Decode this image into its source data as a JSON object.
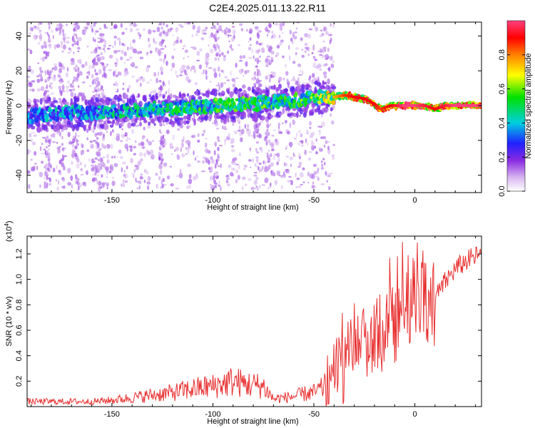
{
  "title": "C2E4.2025.011.13.22.R11",
  "chart_data": [
    {
      "type": "heatmap",
      "xlabel": "Height of straight line (km)",
      "ylabel": "Frequency (Hz)",
      "xlim": [
        -192,
        33
      ],
      "ylim": [
        -50,
        48
      ],
      "xticks": [
        -150,
        -100,
        -50,
        0
      ],
      "yticks": [
        -40,
        -20,
        0,
        20,
        40
      ],
      "xtick_labels": [
        "-150",
        "-100",
        "-50",
        "0"
      ],
      "ytick_labels": [
        "-40",
        "-20",
        "0",
        "20",
        "40"
      ],
      "colorbar": {
        "label": "Normalized spectral amplitude",
        "range": [
          0,
          1
        ],
        "ticks": [
          0.0,
          0.2,
          0.4,
          0.6,
          0.8
        ],
        "tick_labels": [
          "0.0",
          "0.2",
          "0.4",
          "0.6",
          "0.8"
        ],
        "colors": [
          "#ffffff",
          "#d8b6f0",
          "#8a2be2",
          "#2020ff",
          "#00d0e0",
          "#00e000",
          "#ffff00",
          "#ff8000",
          "#ff0000",
          "#ff4080"
        ]
      },
      "ridge": [
        {
          "x": -192,
          "f": -6,
          "a": 0.35
        },
        {
          "x": -180,
          "f": -5,
          "a": 0.4
        },
        {
          "x": -170,
          "f": -4,
          "a": 0.4
        },
        {
          "x": -160,
          "f": -4,
          "a": 0.4
        },
        {
          "x": -150,
          "f": -3,
          "a": 0.45
        },
        {
          "x": -140,
          "f": -3,
          "a": 0.45
        },
        {
          "x": -130,
          "f": -2,
          "a": 0.5
        },
        {
          "x": -120,
          "f": -2,
          "a": 0.5
        },
        {
          "x": -110,
          "f": -1,
          "a": 0.5
        },
        {
          "x": -100,
          "f": 0,
          "a": 0.55
        },
        {
          "x": -90,
          "f": 0,
          "a": 0.55
        },
        {
          "x": -80,
          "f": 1,
          "a": 0.55
        },
        {
          "x": -70,
          "f": 2,
          "a": 0.55
        },
        {
          "x": -60,
          "f": 3,
          "a": 0.55
        },
        {
          "x": -50,
          "f": 4,
          "a": 0.6
        },
        {
          "x": -45,
          "f": 5,
          "a": 0.65
        },
        {
          "x": -40,
          "f": 5,
          "a": 0.7
        },
        {
          "x": -35,
          "f": 6,
          "a": 0.8
        },
        {
          "x": -30,
          "f": 5,
          "a": 0.85
        },
        {
          "x": -25,
          "f": 4,
          "a": 0.85
        },
        {
          "x": -20,
          "f": 1,
          "a": 0.85
        },
        {
          "x": -17,
          "f": -2,
          "a": 0.8
        },
        {
          "x": -12,
          "f": 0,
          "a": 0.85
        },
        {
          "x": -5,
          "f": 0,
          "a": 0.95
        },
        {
          "x": 0,
          "f": 0,
          "a": 0.95
        },
        {
          "x": 5,
          "f": 0,
          "a": 0.9
        },
        {
          "x": 10,
          "f": -2,
          "a": 0.85
        },
        {
          "x": 15,
          "f": 0,
          "a": 0.9
        },
        {
          "x": 20,
          "f": 0,
          "a": 0.95
        },
        {
          "x": 25,
          "f": 0,
          "a": 0.95
        },
        {
          "x": 33,
          "f": 0,
          "a": 0.95
        }
      ]
    },
    {
      "type": "line",
      "xlabel": "Height of straight line (km)",
      "ylabel": "SNR (10 * v/v)",
      "y_multiplier": "(x10⁴)",
      "y_multiplier_base": "(x10",
      "y_multiplier_exp": "4",
      "y_multiplier_close": ")",
      "xlim": [
        -192,
        33
      ],
      "ylim": [
        0,
        1.34
      ],
      "xticks": [
        -150,
        -100,
        -50,
        0
      ],
      "yticks": [
        0.2,
        0.4,
        0.6,
        0.8,
        1.0,
        1.2
      ],
      "xtick_labels": [
        "-150",
        "-100",
        "-50",
        "0"
      ],
      "ytick_labels": [
        "0.2",
        "0.4",
        "0.6",
        "0.8",
        "1.0",
        "1.2"
      ],
      "series": [
        {
          "color": "#e83030",
          "x": [
            -192,
            -180,
            -170,
            -160,
            -150,
            -140,
            -130,
            -120,
            -110,
            -100,
            -95,
            -90,
            -85,
            -80,
            -75,
            -70,
            -65,
            -60,
            -55,
            -50,
            -45,
            -42,
            -40,
            -35,
            -30,
            -25,
            -22,
            -20,
            -15,
            -12,
            -10,
            -8,
            -5,
            -2,
            0,
            5,
            10,
            15,
            20,
            25,
            30,
            33
          ],
          "y": [
            0.04,
            0.04,
            0.04,
            0.04,
            0.05,
            0.07,
            0.09,
            0.11,
            0.14,
            0.16,
            0.18,
            0.2,
            0.18,
            0.17,
            0.16,
            0.06,
            0.07,
            0.08,
            0.1,
            0.11,
            0.15,
            0.2,
            0.3,
            0.38,
            0.45,
            0.55,
            0.5,
            0.6,
            0.55,
            0.75,
            0.65,
            0.8,
            0.88,
            0.85,
            0.95,
            0.88,
            0.85,
            0.98,
            1.08,
            1.14,
            1.18,
            1.2
          ]
        }
      ]
    }
  ]
}
